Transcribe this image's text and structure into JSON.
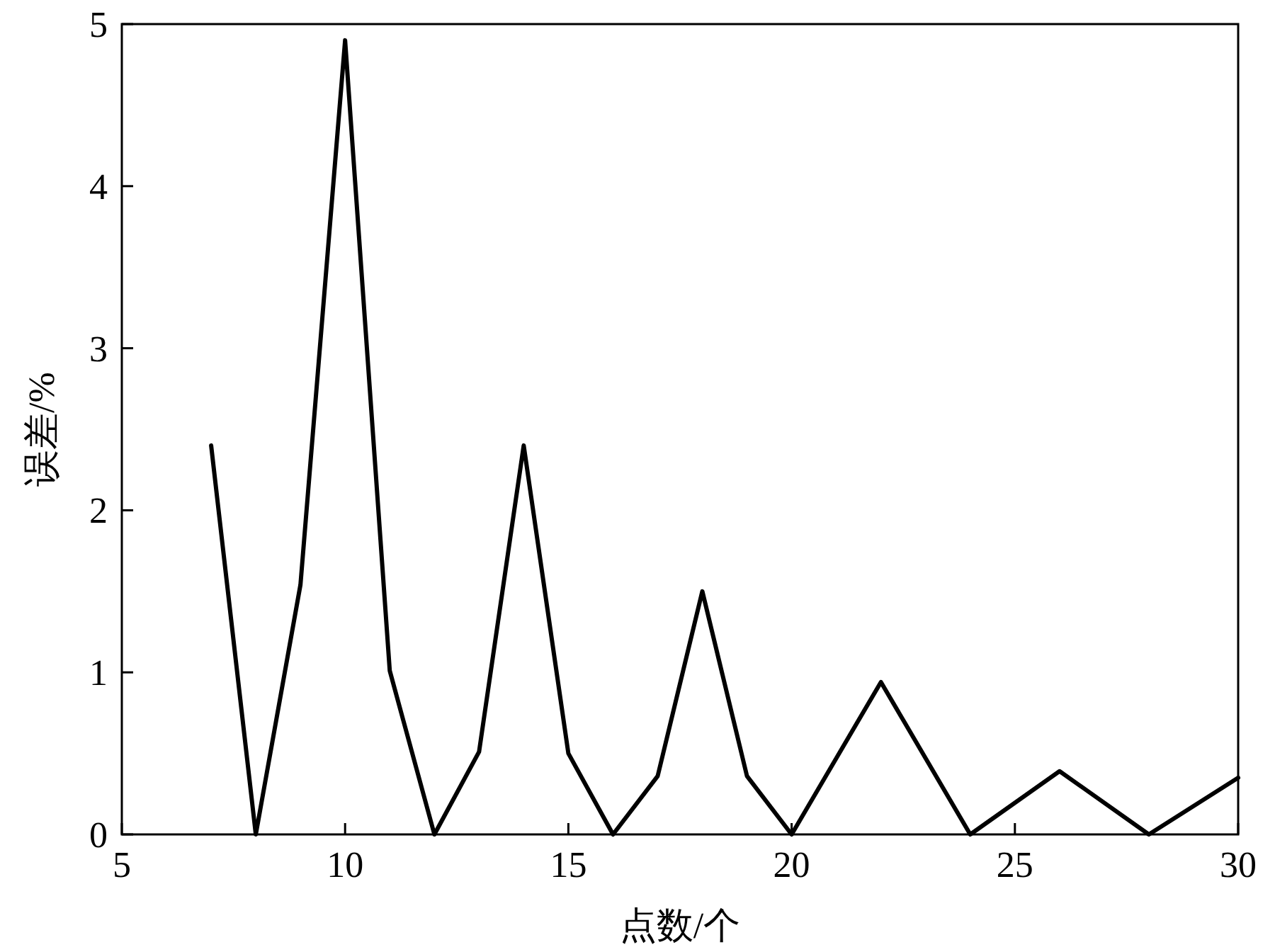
{
  "chart_data": {
    "type": "line",
    "xlabel": "点数/个",
    "ylabel": "误差/%",
    "x": [
      7,
      8,
      9,
      10,
      11,
      12,
      13,
      14,
      15,
      16,
      17,
      18,
      19,
      20,
      22,
      24,
      26,
      28,
      30
    ],
    "values": [
      2.4,
      0,
      1.54,
      4.9,
      1.01,
      0,
      0.51,
      2.4,
      0.5,
      0,
      0.36,
      1.5,
      0.36,
      0,
      0.94,
      0,
      0.39,
      0,
      0.35
    ],
    "color": "#000000",
    "xlim": [
      5,
      30
    ],
    "ylim": [
      0,
      5
    ],
    "xticks": [
      5,
      10,
      15,
      20,
      25,
      30
    ],
    "yticks": [
      0,
      1,
      2,
      3,
      4,
      5
    ]
  }
}
